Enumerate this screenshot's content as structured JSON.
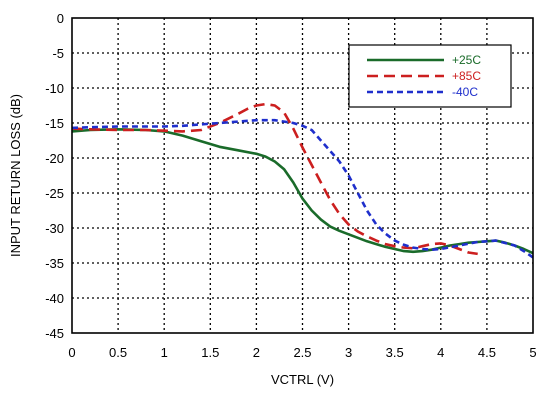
{
  "chart_data": {
    "type": "line",
    "xlabel": "VCTRL (V)",
    "ylabel": "INPUT RETURN LOSS (dB)",
    "xlim": [
      0,
      5
    ],
    "ylim": [
      -45,
      0
    ],
    "xticks": [
      0,
      0.5,
      1,
      1.5,
      2,
      2.5,
      3,
      3.5,
      4,
      4.5,
      5
    ],
    "yticks": [
      0,
      -5,
      -10,
      -15,
      -20,
      -25,
      -30,
      -35,
      -40,
      -45
    ],
    "xtick_labels": [
      "0",
      "0.5",
      "1",
      "1.5",
      "2",
      "2.5",
      "3",
      "3.5",
      "4",
      "4.5",
      "5"
    ],
    "ytick_labels": [
      "0",
      "-5",
      "-10",
      "-15",
      "-20",
      "-25",
      "-30",
      "-35",
      "-40",
      "-45"
    ],
    "grid": true,
    "legend_position": "top-right",
    "series": [
      {
        "name": "+25C",
        "color": "#1a6b2a",
        "dash": "solid",
        "x": [
          0,
          0.2,
          0.5,
          0.8,
          1.0,
          1.2,
          1.4,
          1.6,
          1.8,
          2.0,
          2.1,
          2.2,
          2.3,
          2.4,
          2.5,
          2.6,
          2.7,
          2.8,
          2.9,
          3.0,
          3.1,
          3.2,
          3.3,
          3.4,
          3.5,
          3.6,
          3.7,
          3.8,
          3.9,
          4.0,
          4.1,
          4.2,
          4.3,
          4.4,
          4.5,
          4.6,
          4.7,
          4.8,
          4.9,
          5.0
        ],
        "y": [
          -16.2,
          -16.0,
          -15.9,
          -16.0,
          -16.2,
          -16.8,
          -17.6,
          -18.4,
          -18.9,
          -19.4,
          -19.8,
          -20.5,
          -21.6,
          -23.5,
          -25.8,
          -27.5,
          -28.8,
          -29.8,
          -30.4,
          -30.9,
          -31.4,
          -31.9,
          -32.3,
          -32.7,
          -33.0,
          -33.3,
          -33.4,
          -33.3,
          -33.1,
          -32.8,
          -32.5,
          -32.3,
          -32.1,
          -32.0,
          -31.9,
          -31.8,
          -32.1,
          -32.5,
          -33.0,
          -33.6
        ]
      },
      {
        "name": "+85C",
        "color": "#cc1f1f",
        "dash": "long",
        "x": [
          0,
          0.2,
          0.5,
          0.8,
          1.0,
          1.2,
          1.4,
          1.6,
          1.8,
          1.9,
          2.0,
          2.1,
          2.2,
          2.3,
          2.4,
          2.5,
          2.6,
          2.7,
          2.8,
          2.9,
          3.0,
          3.1,
          3.2,
          3.3,
          3.4,
          3.5,
          3.6,
          3.7,
          3.8,
          3.9,
          4.0,
          4.1,
          4.2,
          4.3,
          4.4
        ],
        "y": [
          -15.8,
          -15.9,
          -16.0,
          -16.0,
          -16.1,
          -16.2,
          -16.0,
          -15.0,
          -13.7,
          -13.0,
          -12.5,
          -12.3,
          -12.5,
          -13.5,
          -15.8,
          -18.5,
          -21.0,
          -23.5,
          -26.0,
          -28.0,
          -29.5,
          -30.5,
          -31.2,
          -31.8,
          -32.3,
          -32.6,
          -32.8,
          -32.9,
          -32.6,
          -32.3,
          -32.2,
          -32.5,
          -33.0,
          -33.5,
          -33.7
        ]
      },
      {
        "name": "-40C",
        "color": "#1f2fcc",
        "dash": "short",
        "x": [
          0,
          0.2,
          0.5,
          0.8,
          1.0,
          1.2,
          1.4,
          1.6,
          1.8,
          2.0,
          2.2,
          2.4,
          2.5,
          2.6,
          2.7,
          2.8,
          2.9,
          3.0,
          3.1,
          3.2,
          3.3,
          3.4,
          3.5,
          3.6,
          3.7,
          3.8,
          3.9,
          4.0,
          4.2,
          4.4,
          4.6,
          4.8,
          4.9,
          5.0
        ],
        "y": [
          -15.7,
          -15.6,
          -15.5,
          -15.5,
          -15.5,
          -15.4,
          -15.2,
          -15.0,
          -14.8,
          -14.6,
          -14.6,
          -15.0,
          -15.4,
          -16.0,
          -17.5,
          -19.0,
          -20.5,
          -22.5,
          -25.0,
          -27.5,
          -29.5,
          -30.8,
          -31.8,
          -32.4,
          -32.8,
          -33.0,
          -33.1,
          -33.0,
          -32.5,
          -32.0,
          -31.8,
          -32.5,
          -33.3,
          -34.2
        ]
      }
    ]
  }
}
